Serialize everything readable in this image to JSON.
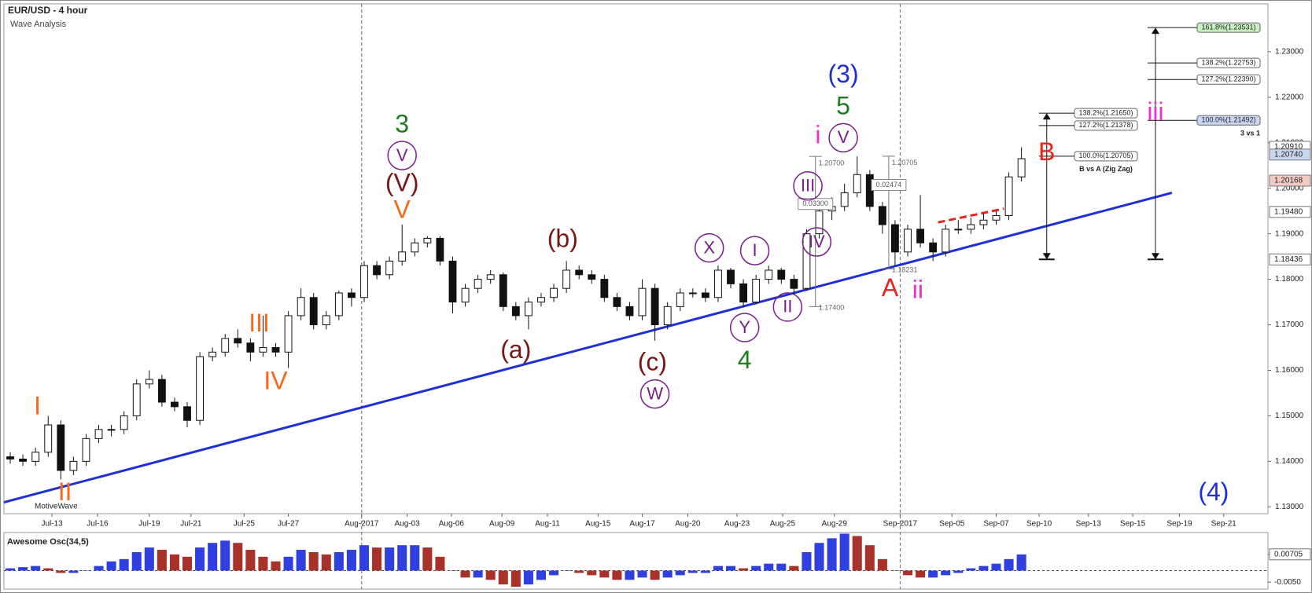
{
  "chart_data": {
    "type": "candlestick",
    "title": "EUR/USD - 4 hour",
    "subtitle": "Wave Analysis",
    "watermark": "MotiveWave",
    "xlim": [
      -0.5,
      99.5
    ],
    "xticks": [
      {
        "value": 3.3,
        "label": "Jul-13"
      },
      {
        "value": 6.9,
        "label": "Jul-16"
      },
      {
        "value": 11.0,
        "label": "Jul-19"
      },
      {
        "value": 14.3,
        "label": "Jul-21"
      },
      {
        "value": 18.5,
        "label": "Jul-25"
      },
      {
        "value": 22.0,
        "label": "Jul-27"
      },
      {
        "value": 27.8,
        "label": "Aug-2017"
      },
      {
        "value": 31.4,
        "label": "Aug-03"
      },
      {
        "value": 34.9,
        "label": "Aug-06"
      },
      {
        "value": 38.9,
        "label": "Aug-09"
      },
      {
        "value": 42.5,
        "label": "Aug-11"
      },
      {
        "value": 46.5,
        "label": "Aug-15"
      },
      {
        "value": 50.0,
        "label": "Aug-17"
      },
      {
        "value": 53.6,
        "label": "Aug-20"
      },
      {
        "value": 57.5,
        "label": "Aug-23"
      },
      {
        "value": 61.1,
        "label": "Aug-25"
      },
      {
        "value": 65.2,
        "label": "Aug-29"
      },
      {
        "value": 70.4,
        "label": "Sep-2017"
      },
      {
        "value": 74.5,
        "label": "Sep-05"
      },
      {
        "value": 78.0,
        "label": "Sep-07"
      },
      {
        "value": 81.4,
        "label": "Sep-10"
      },
      {
        "value": 85.3,
        "label": "Sep-13"
      },
      {
        "value": 88.8,
        "label": "Sep-15"
      },
      {
        "value": 92.5,
        "label": "Sep-19"
      },
      {
        "value": 96.0,
        "label": "Sep-21"
      }
    ],
    "separators": [
      27.8,
      70.4
    ],
    "ylim": [
      1.1285,
      1.2405
    ],
    "yticks": [
      {
        "value": 1.13,
        "label": "1.13000"
      },
      {
        "value": 1.14,
        "label": "1.14000"
      },
      {
        "value": 1.15,
        "label": "1.15000"
      },
      {
        "value": 1.16,
        "label": "1.16000"
      },
      {
        "value": 1.17,
        "label": "1.17000"
      },
      {
        "value": 1.18,
        "label": "1.18000"
      },
      {
        "value": 1.19,
        "label": "1.19000"
      },
      {
        "value": 1.2,
        "label": "1.20000"
      },
      {
        "value": 1.21,
        "label": "1.21000"
      },
      {
        "value": 1.22,
        "label": "1.22000"
      },
      {
        "value": 1.23,
        "label": "1.23000"
      }
    ],
    "open": [
      1.141,
      1.1405,
      1.14,
      1.142,
      1.148,
      1.138,
      1.14,
      1.145,
      1.147,
      1.147,
      1.15,
      1.157,
      1.158,
      1.153,
      1.152,
      1.149,
      1.163,
      1.164,
      1.167,
      1.166,
      1.164,
      1.165,
      1.164,
      1.172,
      1.176,
      1.17,
      1.172,
      1.177,
      1.176,
      1.183,
      1.181,
      1.184,
      1.186,
      1.188,
      1.189,
      1.184,
      1.175,
      1.178,
      1.18,
      1.181,
      1.174,
      1.172,
      1.175,
      1.176,
      1.178,
      1.182,
      1.181,
      1.18,
      1.176,
      1.174,
      1.172,
      1.178,
      1.17,
      1.174,
      1.177,
      1.177,
      1.176,
      1.182,
      1.179,
      1.175,
      1.18,
      1.182,
      1.18,
      1.178,
      1.19,
      1.195,
      1.196,
      1.199,
      1.203,
      1.196,
      1.192,
      1.186,
      1.191,
      1.188,
      1.186,
      1.191,
      1.191,
      1.192,
      1.193,
      1.194,
      1.2025
    ],
    "high": [
      1.142,
      1.1415,
      1.143,
      1.15,
      1.149,
      1.141,
      1.146,
      1.148,
      1.148,
      1.151,
      1.158,
      1.16,
      1.159,
      1.154,
      1.153,
      1.164,
      1.165,
      1.168,
      1.169,
      1.167,
      1.172,
      1.166,
      1.173,
      1.178,
      1.177,
      1.173,
      1.1775,
      1.178,
      1.184,
      1.184,
      1.185,
      1.192,
      1.189,
      1.1895,
      1.1895,
      1.185,
      1.179,
      1.181,
      1.182,
      1.1815,
      1.175,
      1.176,
      1.177,
      1.179,
      1.184,
      1.183,
      1.182,
      1.181,
      1.177,
      1.175,
      1.18,
      1.179,
      1.175,
      1.178,
      1.178,
      1.178,
      1.183,
      1.1825,
      1.18,
      1.181,
      1.183,
      1.1825,
      1.181,
      1.191,
      1.197,
      1.198,
      1.201,
      1.207,
      1.204,
      1.197,
      1.193,
      1.192,
      1.1985,
      1.189,
      1.192,
      1.193,
      1.1935,
      1.1945,
      1.195,
      1.2035,
      1.209
    ],
    "low": [
      1.1395,
      1.139,
      1.139,
      1.141,
      1.136,
      1.137,
      1.139,
      1.144,
      1.1455,
      1.146,
      1.149,
      1.156,
      1.152,
      1.151,
      1.1475,
      1.148,
      1.162,
      1.163,
      1.165,
      1.162,
      1.163,
      1.163,
      1.1605,
      1.171,
      1.169,
      1.169,
      1.171,
      1.174,
      1.175,
      1.18,
      1.18,
      1.183,
      1.185,
      1.187,
      1.183,
      1.1725,
      1.174,
      1.177,
      1.179,
      1.173,
      1.171,
      1.169,
      1.174,
      1.175,
      1.177,
      1.18,
      1.179,
      1.175,
      1.173,
      1.171,
      1.171,
      1.1665,
      1.169,
      1.173,
      1.176,
      1.175,
      1.175,
      1.178,
      1.174,
      1.1745,
      1.179,
      1.179,
      1.1765,
      1.1775,
      1.189,
      1.193,
      1.195,
      1.198,
      1.195,
      1.19,
      1.183,
      1.185,
      1.187,
      1.184,
      1.185,
      1.19,
      1.19,
      1.191,
      1.192,
      1.193,
      1.2015
    ],
    "close": [
      1.1405,
      1.14,
      1.142,
      1.148,
      1.138,
      1.14,
      1.145,
      1.147,
      1.147,
      1.15,
      1.157,
      1.158,
      1.153,
      1.152,
      1.149,
      1.163,
      1.164,
      1.167,
      1.166,
      1.164,
      1.165,
      1.164,
      1.172,
      1.176,
      1.17,
      1.172,
      1.177,
      1.176,
      1.183,
      1.181,
      1.184,
      1.186,
      1.188,
      1.189,
      1.184,
      1.175,
      1.178,
      1.18,
      1.181,
      1.174,
      1.172,
      1.175,
      1.176,
      1.178,
      1.182,
      1.181,
      1.18,
      1.176,
      1.174,
      1.172,
      1.178,
      1.17,
      1.174,
      1.177,
      1.177,
      1.176,
      1.182,
      1.179,
      1.175,
      1.18,
      1.182,
      1.18,
      1.178,
      1.19,
      1.195,
      1.196,
      1.199,
      1.203,
      1.196,
      1.192,
      1.186,
      1.191,
      1.188,
      1.186,
      1.191,
      1.191,
      1.192,
      1.193,
      1.194,
      1.2025,
      1.2065
    ],
    "price_tags": [
      {
        "value": 1.2091,
        "label": "1.20910",
        "fill": "#ffffff"
      },
      {
        "value": 1.2074,
        "label": "1.20740",
        "fill": "#c9d6f2"
      },
      {
        "value": 1.20168,
        "label": "1.20168",
        "fill": "#f4cbc4"
      },
      {
        "value": 1.1948,
        "label": "1.19480",
        "fill": "#ffffff"
      },
      {
        "value": 1.18436,
        "label": "1.18436",
        "fill": "#ffffff"
      }
    ],
    "trendline": {
      "x": [
        -0.5,
        91.9
      ],
      "y": [
        1.131,
        1.199
      ],
      "color": "#1f2fd6"
    },
    "red_dashed": {
      "x": [
        73.4,
        78.6
      ],
      "y": [
        1.1925,
        1.1955
      ],
      "color": "#e8241c"
    },
    "waves": [
      {
        "text": "I",
        "x": 2.15,
        "y": 1.152,
        "color": "#f26a1b",
        "circled": false
      },
      {
        "text": "II",
        "x": 4.33,
        "y": 1.1331,
        "color": "#f26a1b",
        "circled": false
      },
      {
        "text": "III",
        "x": 19.7,
        "y": 1.1702,
        "color": "#f26a1b",
        "circled": false
      },
      {
        "text": "IV",
        "x": 21.0,
        "y": 1.1575,
        "color": "#f26a1b",
        "circled": false
      },
      {
        "text": "V",
        "x": 31.0,
        "y": 1.1951,
        "color": "#f26a1b",
        "circled": false
      },
      {
        "text": "3",
        "x": 31.0,
        "y": 1.2139,
        "color": "#1e7d1e",
        "circled": false
      },
      {
        "text": "V",
        "x": 31.0,
        "y": 1.2072,
        "color": "#7a1f8a",
        "circled": true
      },
      {
        "text": "(V)",
        "x": 31.0,
        "y": 1.201,
        "color": "#7a1616",
        "circled": false
      },
      {
        "text": "(b)",
        "x": 43.7,
        "y": 1.1887,
        "color": "#7a1616",
        "circled": false
      },
      {
        "text": "(a)",
        "x": 40.0,
        "y": 1.1643,
        "color": "#7a1616",
        "circled": false
      },
      {
        "text": "(c)",
        "x": 50.8,
        "y": 1.1616,
        "color": "#7a1616",
        "circled": false
      },
      {
        "text": "W",
        "x": 51.0,
        "y": 1.1548,
        "color": "#7a1f8a",
        "circled": true
      },
      {
        "text": "X",
        "x": 55.3,
        "y": 1.1869,
        "color": "#7a1f8a",
        "circled": true
      },
      {
        "text": "I",
        "x": 58.9,
        "y": 1.1863,
        "color": "#7a1f8a",
        "circled": true
      },
      {
        "text": "Y",
        "x": 58.1,
        "y": 1.1694,
        "color": "#7a1f8a",
        "circled": true
      },
      {
        "text": "4",
        "x": 58.1,
        "y": 1.1621,
        "color": "#1e7d1e",
        "circled": false
      },
      {
        "text": "II",
        "x": 61.5,
        "y": 1.1739,
        "color": "#7a1f8a",
        "circled": true
      },
      {
        "text": "III",
        "x": 63.1,
        "y": 1.2005,
        "color": "#7a1f8a",
        "circled": true
      },
      {
        "text": "IV",
        "x": 63.8,
        "y": 1.1882,
        "color": "#7a1f8a",
        "circled": true
      },
      {
        "text": "i",
        "x": 63.9,
        "y": 1.2115,
        "color": "#ee2fd2",
        "circled": false
      },
      {
        "text": "V",
        "x": 65.9,
        "y": 1.2111,
        "color": "#7a1f8a",
        "circled": true
      },
      {
        "text": "5",
        "x": 65.9,
        "y": 1.2179,
        "color": "#1e7d1e",
        "circled": false
      },
      {
        "text": "(3)",
        "x": 65.9,
        "y": 1.2249,
        "color": "#1f2fd6",
        "circled": false
      },
      {
        "text": "A",
        "x": 69.6,
        "y": 1.1779,
        "color": "#e8241c",
        "circled": false
      },
      {
        "text": "ii",
        "x": 71.8,
        "y": 1.1775,
        "color": "#ee2fd2",
        "circled": false
      },
      {
        "text": "B",
        "x": 82.0,
        "y": 1.2078,
        "color": "#e8241c",
        "circled": false
      },
      {
        "text": "iii",
        "x": 90.6,
        "y": 1.2166,
        "color": "#ee2fd2",
        "circled": false
      },
      {
        "text": "(4)",
        "x": 95.2,
        "y": 1.1331,
        "color": "#1f2fd6",
        "circled": false
      }
    ],
    "measures": [
      {
        "x": 63.7,
        "high": 1.207,
        "high_label": "1.20700",
        "low": 1.174,
        "low_label": "1.17400",
        "range": 0.033,
        "range_label": "0.03300"
      },
      {
        "x": 69.5,
        "high": 1.20705,
        "high_label": "1.20705",
        "low": 1.18231,
        "low_label": "1.18231",
        "range": 0.02474,
        "range_label": "0.02474"
      }
    ],
    "fibs": [
      {
        "x": 90.6,
        "low": 1.18436,
        "note": "3 vs 1",
        "levels": [
          {
            "value": 1.23531,
            "label": "161.8%(1.23531)",
            "fill": "#c8f0c0"
          },
          {
            "value": 1.22753,
            "label": "138.2%(1.22753)",
            "fill": "#ffffff"
          },
          {
            "value": 1.2239,
            "label": "127.2%(1.22390)",
            "fill": "#ffffff"
          },
          {
            "value": 1.21492,
            "label": "100.0%(1.21492)",
            "fill": "#c9d6f2"
          }
        ]
      },
      {
        "x": 82.0,
        "low": 1.18436,
        "note": "B vs A (Zig Zag)",
        "levels": [
          {
            "value": 1.2165,
            "label": "138.2%(1.21650)",
            "fill": "#ffffff"
          },
          {
            "value": 1.21378,
            "label": "127.2%(1.21378)",
            "fill": "#ffffff"
          },
          {
            "value": 1.20705,
            "label": "100.0%(1.20705)",
            "fill": "#ffffff"
          }
        ]
      }
    ],
    "oscillator": {
      "title": "Awesome Osc(34,5)",
      "up_color": "#2f3fe0",
      "down_color": "#a8322a",
      "ylim": [
        -0.008,
        0.0165
      ],
      "yticks": [
        {
          "value": 0.00705,
          "label": "0.00705"
        },
        {
          "value": -0.005,
          "label": "-0.0050"
        }
      ],
      "values": [
        0.001,
        0.0015,
        0.002,
        0.001,
        -0.001,
        -0.001,
        0.0,
        0.002,
        0.004,
        0.005,
        0.008,
        0.01,
        0.009,
        0.007,
        0.006,
        0.01,
        0.012,
        0.013,
        0.012,
        0.009,
        0.006,
        0.004,
        0.006,
        0.009,
        0.008,
        0.007,
        0.008,
        0.009,
        0.011,
        0.01,
        0.01,
        0.011,
        0.011,
        0.01,
        0.006,
        0.0,
        -0.003,
        -0.003,
        -0.004,
        -0.006,
        -0.007,
        -0.006,
        -0.004,
        -0.002,
        0.0,
        -0.001,
        -0.002,
        -0.003,
        -0.004,
        -0.004,
        -0.003,
        -0.004,
        -0.003,
        -0.002,
        -0.001,
        -0.001,
        0.002,
        0.002,
        0.001,
        0.002,
        0.003,
        0.003,
        0.002,
        0.008,
        0.012,
        0.014,
        0.016,
        0.015,
        0.011,
        0.005,
        0.0,
        -0.002,
        -0.003,
        -0.003,
        -0.002,
        -0.001,
        0.001,
        0.002,
        0.003,
        0.005,
        0.007
      ]
    }
  }
}
